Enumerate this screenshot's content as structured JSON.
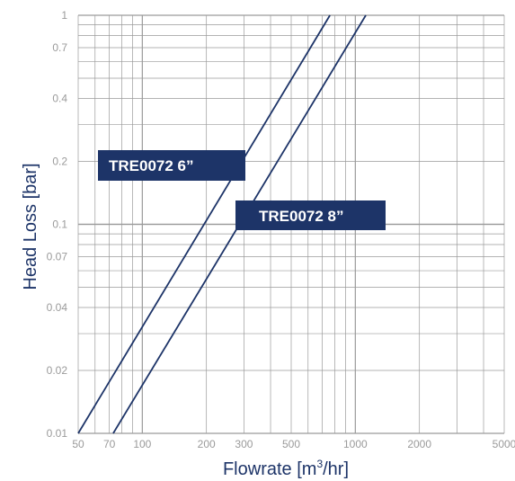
{
  "chart_data": {
    "type": "line",
    "xscale": "log",
    "yscale": "log",
    "xlim": [
      50,
      5000
    ],
    "ylim": [
      0.01,
      1
    ],
    "grid": true,
    "xlabel_text": "Flowrate [m",
    "xlabel_sup": "3",
    "xlabel_tail": "/hr]",
    "ylabel": "Head Loss [bar]",
    "x_tick_labels": [
      "50",
      "70",
      "100",
      "200",
      "300",
      "500",
      "1000",
      "2000",
      "5000"
    ],
    "y_tick_labels": [
      "0.01",
      "0.02",
      "0.04",
      "0.07",
      "0.1",
      "0.2",
      "0.4",
      "0.7",
      "1"
    ],
    "x_ticks": [
      50,
      70,
      100,
      200,
      300,
      500,
      1000,
      2000,
      5000
    ],
    "y_ticks": [
      0.01,
      0.02,
      0.04,
      0.07,
      0.1,
      0.2,
      0.4,
      0.7,
      1
    ],
    "series": [
      {
        "name": "TRE0072  6”",
        "x": [
          50,
          760
        ],
        "y": [
          0.01,
          1
        ]
      },
      {
        "name": "TRE0072  8”",
        "x": [
          73,
          1120
        ],
        "y": [
          0.01,
          1
        ]
      }
    ],
    "line_color": "#1d3468",
    "label_bg": "#1d3468",
    "grid_color": "#9a9a9a"
  }
}
